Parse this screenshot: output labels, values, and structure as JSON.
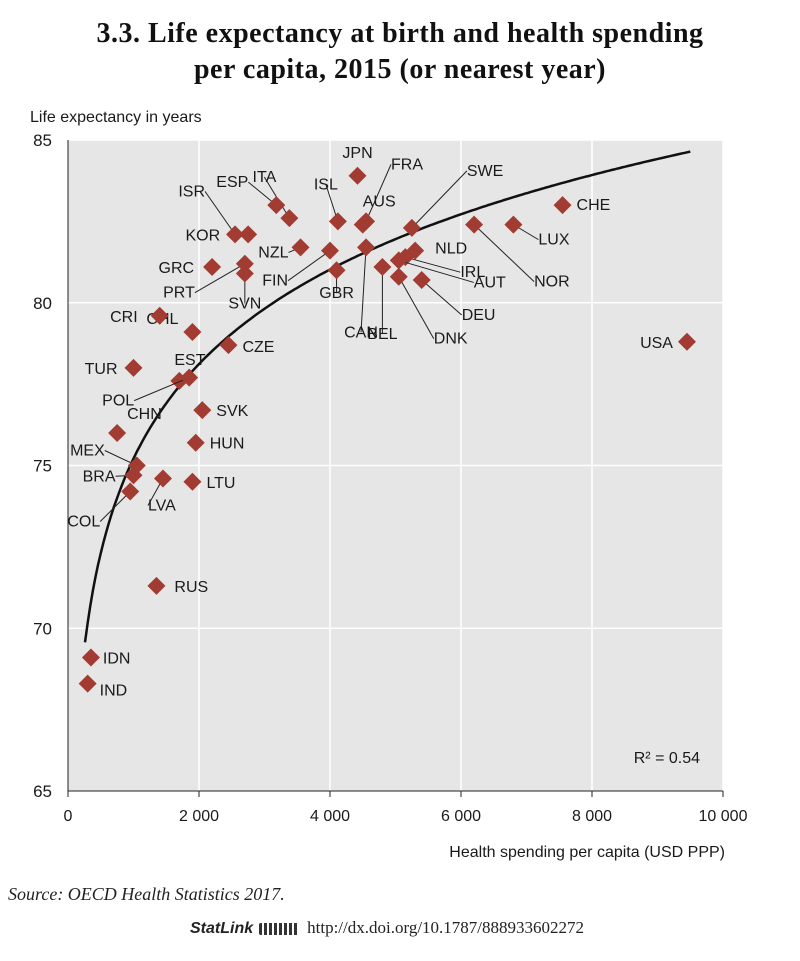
{
  "header": {
    "title_line1": "3.3. Life expectancy at birth and health spending",
    "title_line2": "per capita, 2015 (or nearest year)"
  },
  "footer": {
    "source": "Source: OECD Health Statistics 2017.",
    "statlink_label": "StatLink",
    "statlink_url": "http://dx.doi.org/10.1787/888933602272"
  },
  "colors": {
    "marker": "#a23b32",
    "plot_bg": "#e6e6e6",
    "grid": "#ffffff",
    "curve": "#111111"
  },
  "chart_data": {
    "type": "scatter",
    "xlabel": "Health spending per capita (USD PPP)",
    "ylabel": "Life expectancy in years",
    "xlim": [
      0,
      10000
    ],
    "ylim": [
      65,
      85
    ],
    "xticks": [
      0,
      2000,
      4000,
      6000,
      8000,
      10000
    ],
    "xtick_labels": [
      "0",
      "2 000",
      "4 000",
      "6 000",
      "8 000",
      "10 000"
    ],
    "yticks": [
      65,
      70,
      75,
      80,
      85
    ],
    "ytick_labels": [
      "65",
      "70",
      "75",
      "80",
      "85"
    ],
    "grid": true,
    "trendline": "logarithmic",
    "annotation": "R² = 0.54",
    "points": [
      {
        "label": "JPN",
        "x": 4420,
        "y": 83.9
      },
      {
        "label": "ITA",
        "x": 3380,
        "y": 82.6
      },
      {
        "label": "ESP",
        "x": 3180,
        "y": 83.0
      },
      {
        "label": "ISL",
        "x": 4120,
        "y": 82.5
      },
      {
        "label": "FRA",
        "x": 4550,
        "y": 82.5
      },
      {
        "label": "SWE",
        "x": 5250,
        "y": 82.3
      },
      {
        "label": "AUS",
        "x": 4500,
        "y": 82.4
      },
      {
        "label": "CHE",
        "x": 7550,
        "y": 83.0
      },
      {
        "label": "ISR",
        "x": 2550,
        "y": 82.1
      },
      {
        "label": "KOR",
        "x": 2750,
        "y": 82.1
      },
      {
        "label": "NZL",
        "x": 3550,
        "y": 81.7
      },
      {
        "label": "LUX",
        "x": 6800,
        "y": 82.4
      },
      {
        "label": "NOR",
        "x": 6200,
        "y": 82.4
      },
      {
        "label": "NLD",
        "x": 5300,
        "y": 81.6
      },
      {
        "label": "IRL",
        "x": 5150,
        "y": 81.4
      },
      {
        "label": "AUT",
        "x": 5050,
        "y": 81.3
      },
      {
        "label": "DEU",
        "x": 5400,
        "y": 80.7
      },
      {
        "label": "DNK",
        "x": 5050,
        "y": 80.8
      },
      {
        "label": "BEL",
        "x": 4800,
        "y": 81.1
      },
      {
        "label": "CAN",
        "x": 4550,
        "y": 81.7
      },
      {
        "label": "GBR",
        "x": 4100,
        "y": 81.0
      },
      {
        "label": "FIN",
        "x": 4000,
        "y": 81.6
      },
      {
        "label": "GRC",
        "x": 2200,
        "y": 81.1
      },
      {
        "label": "PRT",
        "x": 2700,
        "y": 81.2
      },
      {
        "label": "SVN",
        "x": 2700,
        "y": 80.9
      },
      {
        "label": "CHL",
        "x": 1900,
        "y": 79.1
      },
      {
        "label": "CRI",
        "x": 1400,
        "y": 79.6
      },
      {
        "label": "CZE",
        "x": 2450,
        "y": 78.7
      },
      {
        "label": "EST",
        "x": 1700,
        "y": 77.6
      },
      {
        "label": "POL",
        "x": 1850,
        "y": 77.7
      },
      {
        "label": "TUR",
        "x": 1000,
        "y": 78.0
      },
      {
        "label": "USA",
        "x": 9450,
        "y": 78.8
      },
      {
        "label": "SVK",
        "x": 2050,
        "y": 76.7
      },
      {
        "label": "CHN",
        "x": 750,
        "y": 76.0
      },
      {
        "label": "HUN",
        "x": 1950,
        "y": 75.7
      },
      {
        "label": "MEX",
        "x": 1050,
        "y": 75.0
      },
      {
        "label": "BRA",
        "x": 1000,
        "y": 74.7
      },
      {
        "label": "LTU",
        "x": 1900,
        "y": 74.5
      },
      {
        "label": "LVA",
        "x": 1450,
        "y": 74.6
      },
      {
        "label": "COL",
        "x": 950,
        "y": 74.2
      },
      {
        "label": "RUS",
        "x": 1350,
        "y": 71.3
      },
      {
        "label": "IDN",
        "x": 350,
        "y": 69.1
      },
      {
        "label": "IND",
        "x": 300,
        "y": 68.3
      }
    ]
  }
}
